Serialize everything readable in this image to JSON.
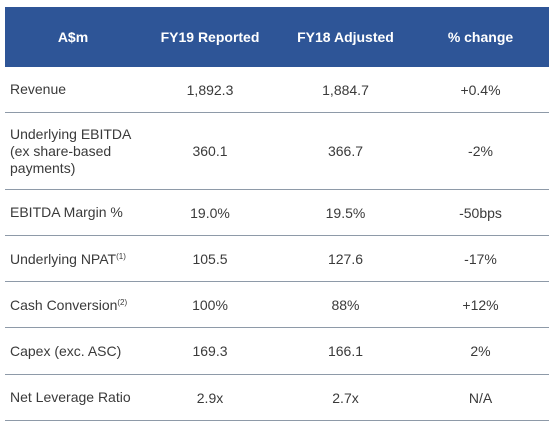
{
  "table": {
    "headers": [
      "A$m",
      "FY19 Reported",
      "FY18 Adjusted",
      "% change"
    ],
    "rows": [
      {
        "label": "Revenue",
        "sup": "",
        "fy19": "1,892.3",
        "fy18": "1,884.7",
        "change": "+0.4%"
      },
      {
        "label": "Underlying EBITDA (ex share-based payments)",
        "sup": "",
        "fy19": "360.1",
        "fy18": "366.7",
        "change": "-2%"
      },
      {
        "label": "EBITDA Margin %",
        "sup": "",
        "fy19": "19.0%",
        "fy18": "19.5%",
        "change": "-50bps"
      },
      {
        "label": "Underlying NPAT",
        "sup": "(1)",
        "fy19": "105.5",
        "fy18": "127.6",
        "change": "-17%"
      },
      {
        "label": "Cash Conversion",
        "sup": "(2)",
        "fy19": "100%",
        "fy18": "88%",
        "change": "+12%"
      },
      {
        "label": "Capex (exc. ASC)",
        "sup": "",
        "fy19": "169.3",
        "fy18": "166.1",
        "change": "2%"
      },
      {
        "label": "Net Leverage Ratio",
        "sup": "",
        "fy19": "2.9x",
        "fy18": "2.7x",
        "change": "N/A"
      }
    ]
  },
  "colors": {
    "header_bg": "#2e5597",
    "header_text": "#ffffff",
    "row_text": "#3a3a3a",
    "rule": "#8e9aa8"
  }
}
